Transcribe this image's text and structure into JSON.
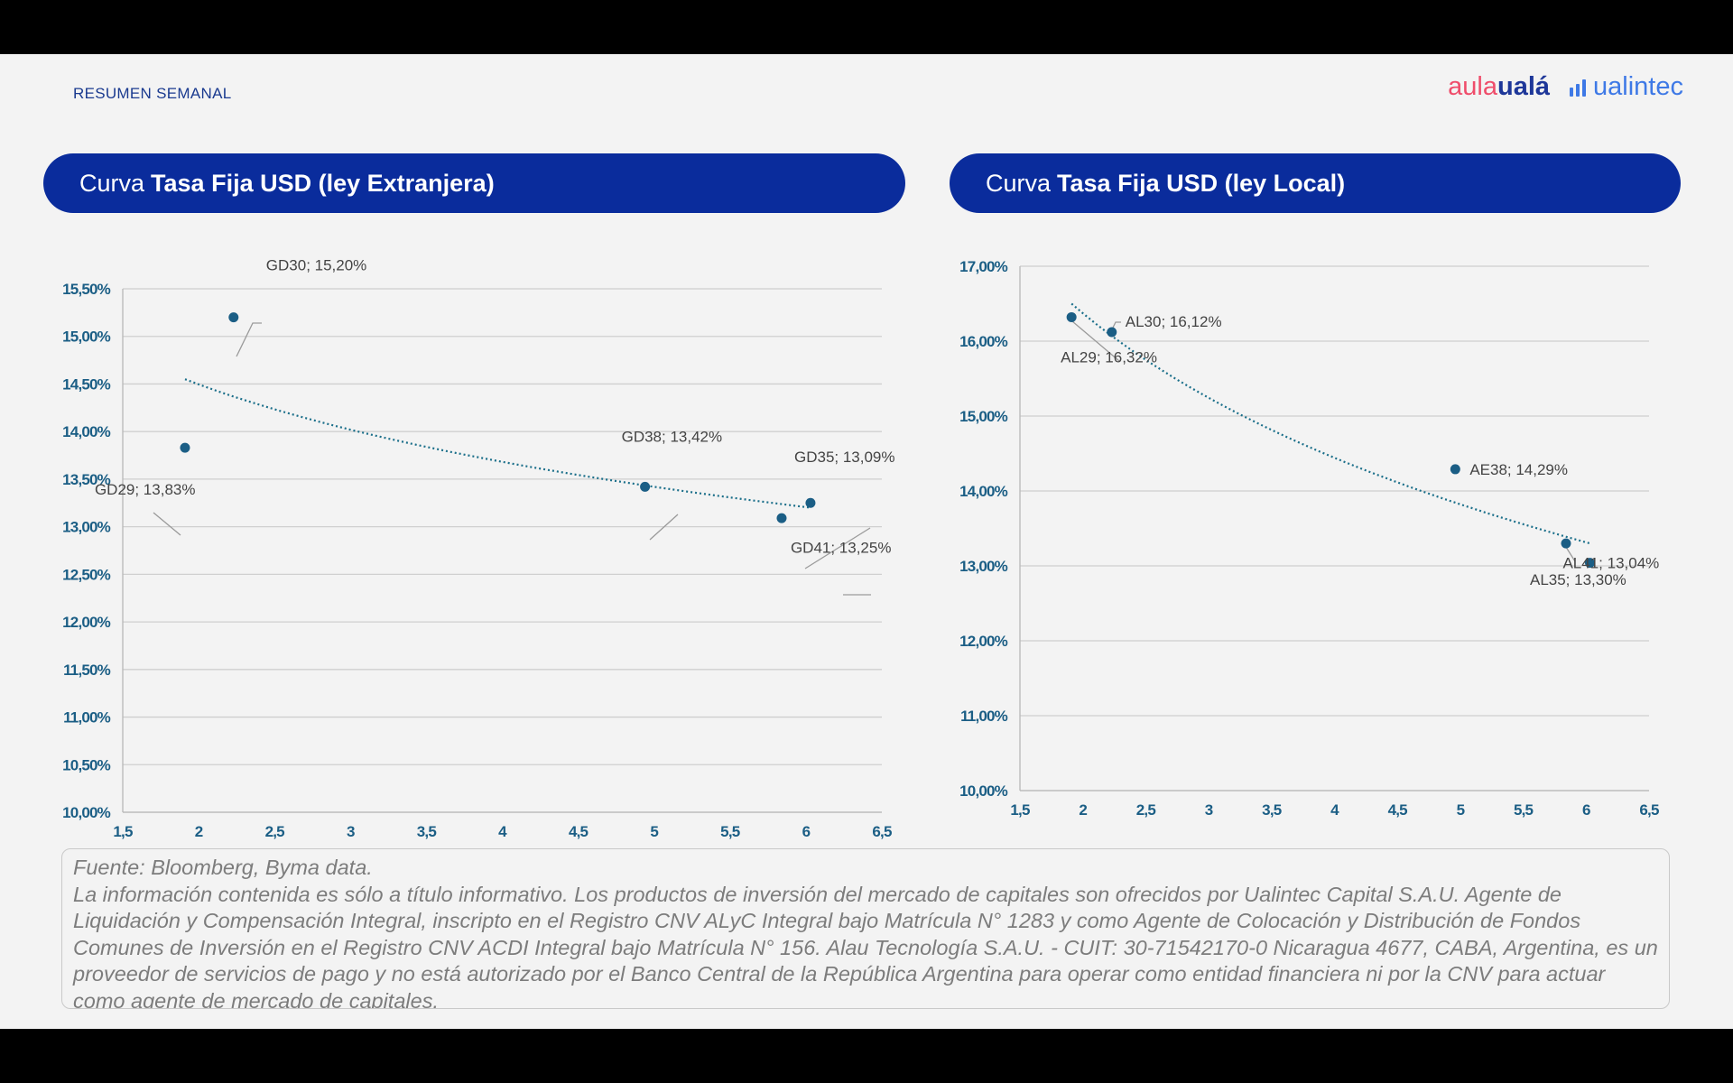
{
  "header": {
    "kicker": "RESUMEN SEMANAL",
    "logo_aula_part1": "aula",
    "logo_aula_part2": "ualá",
    "logo_ualintec": "ualintec"
  },
  "charts_titles": [
    {
      "prefix": "Curva",
      "bold": "Tasa Fija USD (ley Extranjera)"
    },
    {
      "prefix": "Curva",
      "bold": "Tasa Fija USD (ley Local)"
    }
  ],
  "chart_data": [
    {
      "type": "scatter",
      "title": "Curva Tasa Fija USD (ley Extranjera)",
      "xlim": [
        1.5,
        6.5
      ],
      "ylim": [
        10.0,
        15.5
      ],
      "x_ticks": [
        "1,5",
        "2",
        "2,5",
        "3",
        "3,5",
        "4",
        "4,5",
        "5",
        "5,5",
        "6",
        "6,5"
      ],
      "y_ticks": [
        "10,00%",
        "10,50%",
        "11,00%",
        "11,50%",
        "12,00%",
        "12,50%",
        "13,00%",
        "13,50%",
        "14,00%",
        "14,50%",
        "15,00%",
        "15,50%"
      ],
      "points": [
        {
          "name": "GD29",
          "x": 1.91,
          "y": 13.83,
          "label": "GD29; 13,83%"
        },
        {
          "name": "GD30",
          "x": 2.23,
          "y": 15.2,
          "label": "GD30; 15,20%"
        },
        {
          "name": "GD38",
          "x": 4.94,
          "y": 13.42,
          "label": "GD38; 13,42%"
        },
        {
          "name": "GD35",
          "x": 5.84,
          "y": 13.09,
          "label": "GD35; 13,09%"
        },
        {
          "name": "GD41",
          "x": 6.03,
          "y": 13.25,
          "label": "GD41; 13,25%"
        }
      ],
      "trendline": {
        "type": "log",
        "x": [
          1.91,
          6.03
        ],
        "y": [
          14.55,
          13.2
        ]
      }
    },
    {
      "type": "scatter",
      "title": "Curva Tasa Fija USD (ley Local)",
      "xlim": [
        1.5,
        6.5
      ],
      "ylim": [
        10.0,
        17.0
      ],
      "x_ticks": [
        "1,5",
        "2",
        "2,5",
        "3",
        "3,5",
        "4",
        "4,5",
        "5",
        "5,5",
        "6",
        "6,5"
      ],
      "y_ticks": [
        "10,00%",
        "11,00%",
        "12,00%",
        "13,00%",
        "14,00%",
        "15,00%",
        "16,00%",
        "17,00%"
      ],
      "points": [
        {
          "name": "AL29",
          "x": 1.91,
          "y": 16.32,
          "label": "AL29; 16,32%"
        },
        {
          "name": "AL30",
          "x": 2.23,
          "y": 16.12,
          "label": "AL30; 16,12%"
        },
        {
          "name": "AE38",
          "x": 4.96,
          "y": 14.29,
          "label": "AE38; 14,29%"
        },
        {
          "name": "AL35",
          "x": 5.84,
          "y": 13.3,
          "label": "AL35; 13,30%"
        },
        {
          "name": "AL41",
          "x": 6.03,
          "y": 13.04,
          "label": "AL41; 13,04%"
        }
      ],
      "trendline": {
        "type": "log",
        "x": [
          1.91,
          6.03
        ],
        "y": [
          16.5,
          13.3
        ]
      }
    }
  ],
  "colors": {
    "accent": "#0a2c9c",
    "marker": "#1b5e85",
    "trend": "#1b6f8a"
  },
  "source": {
    "line1": "Fuente: Bloomberg, Byma data.",
    "line2": "La información contenida es sólo a título informativo. Los productos de inversión del mercado de capitales son ofrecidos por Ualintec Capital S.A.U. Agente de Liquidación y Compensación Integral, inscripto en el Registro CNV ALyC Integral bajo Matrícula N° 1283 y como Agente de Colocación y Distribución de Fondos Comunes de Inversión en el Registro CNV ACDI Integral bajo Matrícula N° 156. Alau Tecnología S.A.U. - CUIT: 30-71542170-0 Nicaragua 4677, CABA, Argentina, es un proveedor de servicios de pago y no está autorizado por el Banco Central de la República Argentina para operar como entidad financiera ni por la CNV para actuar como agente de mercado de capitales."
  }
}
